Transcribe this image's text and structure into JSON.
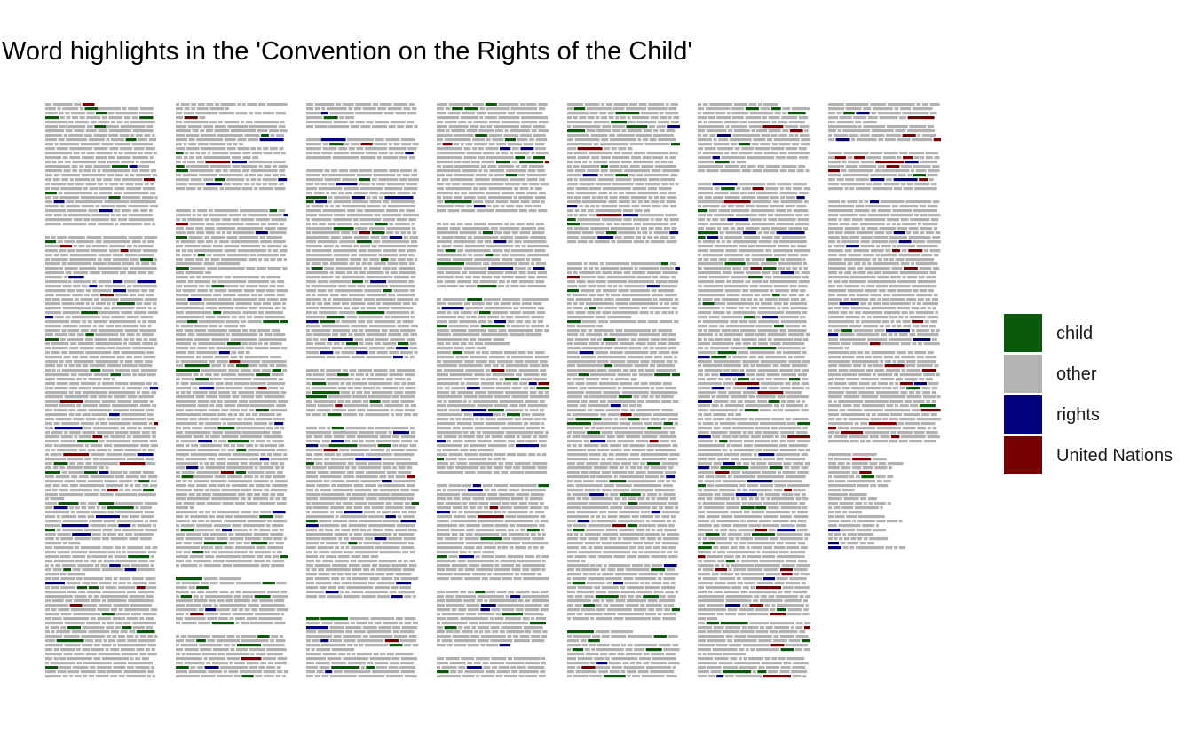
{
  "chart_data": {
    "type": "heatmap",
    "title": "Word highlights in the 'Convention on the Rights of the Child'",
    "xlabel": "",
    "ylabel": "",
    "grid": false,
    "legend_position": "right",
    "categories": [
      "child",
      "other",
      "rights",
      "United Nations"
    ],
    "colors": {
      "child": "#0b5a0b",
      "other": "#b3b3b3",
      "rights": "#01017c",
      "United Nations": "#780000"
    },
    "legend": [
      {
        "name": "child",
        "color": "#0b5a0b"
      },
      {
        "name": "other",
        "color": "#b3b3b3"
      },
      {
        "name": "rights",
        "color": "#01017c"
      },
      {
        "name": "United Nations",
        "color": "#780000"
      }
    ],
    "columns": 7
  }
}
